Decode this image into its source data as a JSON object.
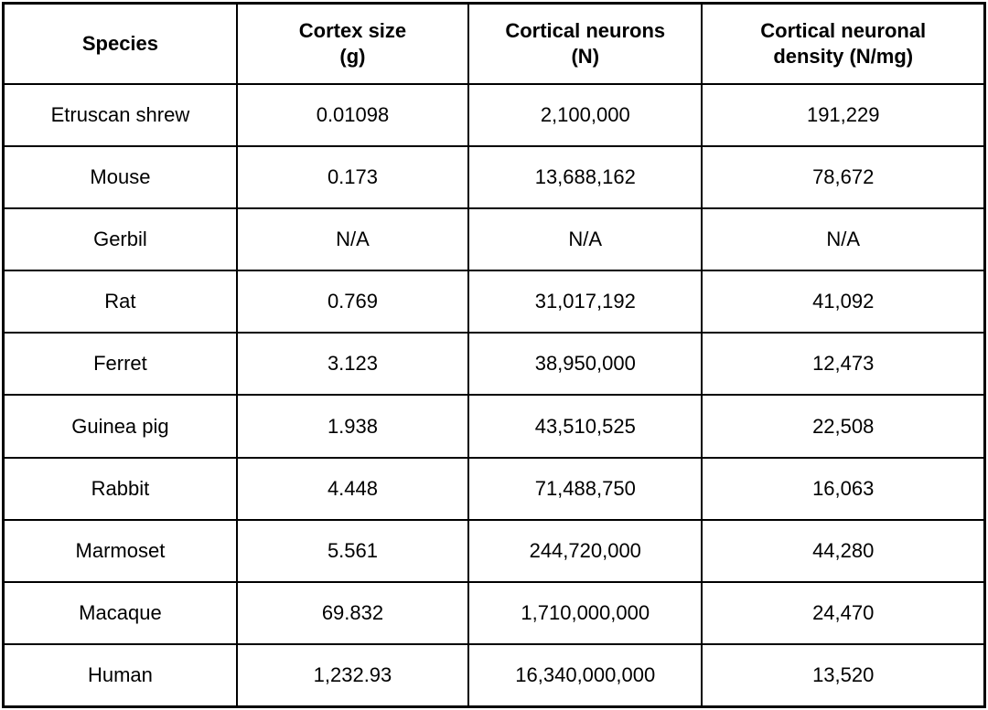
{
  "table": {
    "columns": [
      {
        "key": "species",
        "label": "Species"
      },
      {
        "key": "cortex_size",
        "label": "Cortex size\n(g)"
      },
      {
        "key": "cortical_neurons",
        "label": "Cortical neurons\n(N)"
      },
      {
        "key": "cortical_density",
        "label": "Cortical neuronal\ndensity (N/mg)"
      }
    ],
    "rows": [
      {
        "species": "Etruscan shrew",
        "cortex_size": "0.01098",
        "cortical_neurons": "2,100,000",
        "cortical_density": "191,229"
      },
      {
        "species": "Mouse",
        "cortex_size": "0.173",
        "cortical_neurons": "13,688,162",
        "cortical_density": "78,672"
      },
      {
        "species": "Gerbil",
        "cortex_size": "N/A",
        "cortical_neurons": "N/A",
        "cortical_density": "N/A"
      },
      {
        "species": "Rat",
        "cortex_size": "0.769",
        "cortical_neurons": "31,017,192",
        "cortical_density": "41,092"
      },
      {
        "species": "Ferret",
        "cortex_size": "3.123",
        "cortical_neurons": "38,950,000",
        "cortical_density": "12,473"
      },
      {
        "species": "Guinea pig",
        "cortex_size": "1.938",
        "cortical_neurons": "43,510,525",
        "cortical_density": "22,508"
      },
      {
        "species": "Rabbit",
        "cortex_size": "4.448",
        "cortical_neurons": "71,488,750",
        "cortical_density": "16,063"
      },
      {
        "species": "Marmoset",
        "cortex_size": "5.561",
        "cortical_neurons": "244,720,000",
        "cortical_density": "44,280"
      },
      {
        "species": "Macaque",
        "cortex_size": "69.832",
        "cortical_neurons": "1,710,000,000",
        "cortical_density": "24,470"
      },
      {
        "species": "Human",
        "cortex_size": "1,232.93",
        "cortical_neurons": "16,340,000,000",
        "cortical_density": "13,520"
      }
    ],
    "border_color": "#000000",
    "background_color": "#ffffff",
    "text_color": "#000000"
  }
}
